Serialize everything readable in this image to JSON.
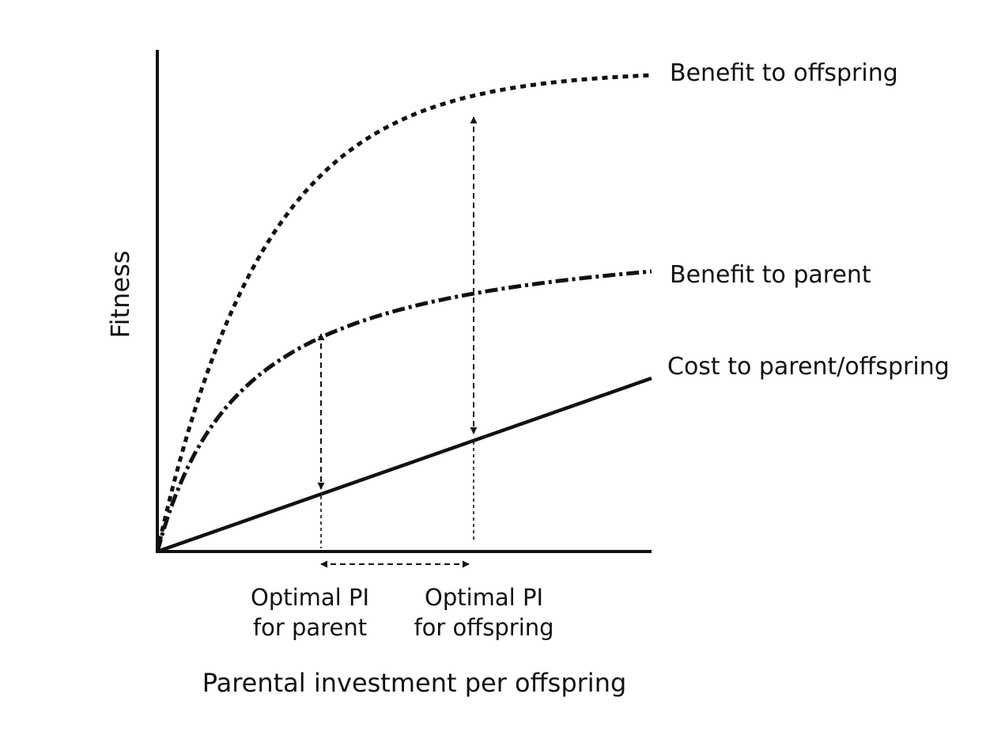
{
  "diagram": {
    "y_axis_label": "Fitness",
    "x_axis_label": "Parental investment per offspring",
    "curves": {
      "benefit_offspring": "Benefit to offspring",
      "benefit_parent": "Benefit to parent",
      "cost": "Cost to parent/offspring"
    },
    "optimal_parent": {
      "line1": "Optimal PI",
      "line2": "for parent"
    },
    "optimal_offspring": {
      "line1": "Optimal PI",
      "line2": "for offspring"
    },
    "colors": {
      "ink": "#111111",
      "background": "#ffffff"
    }
  }
}
